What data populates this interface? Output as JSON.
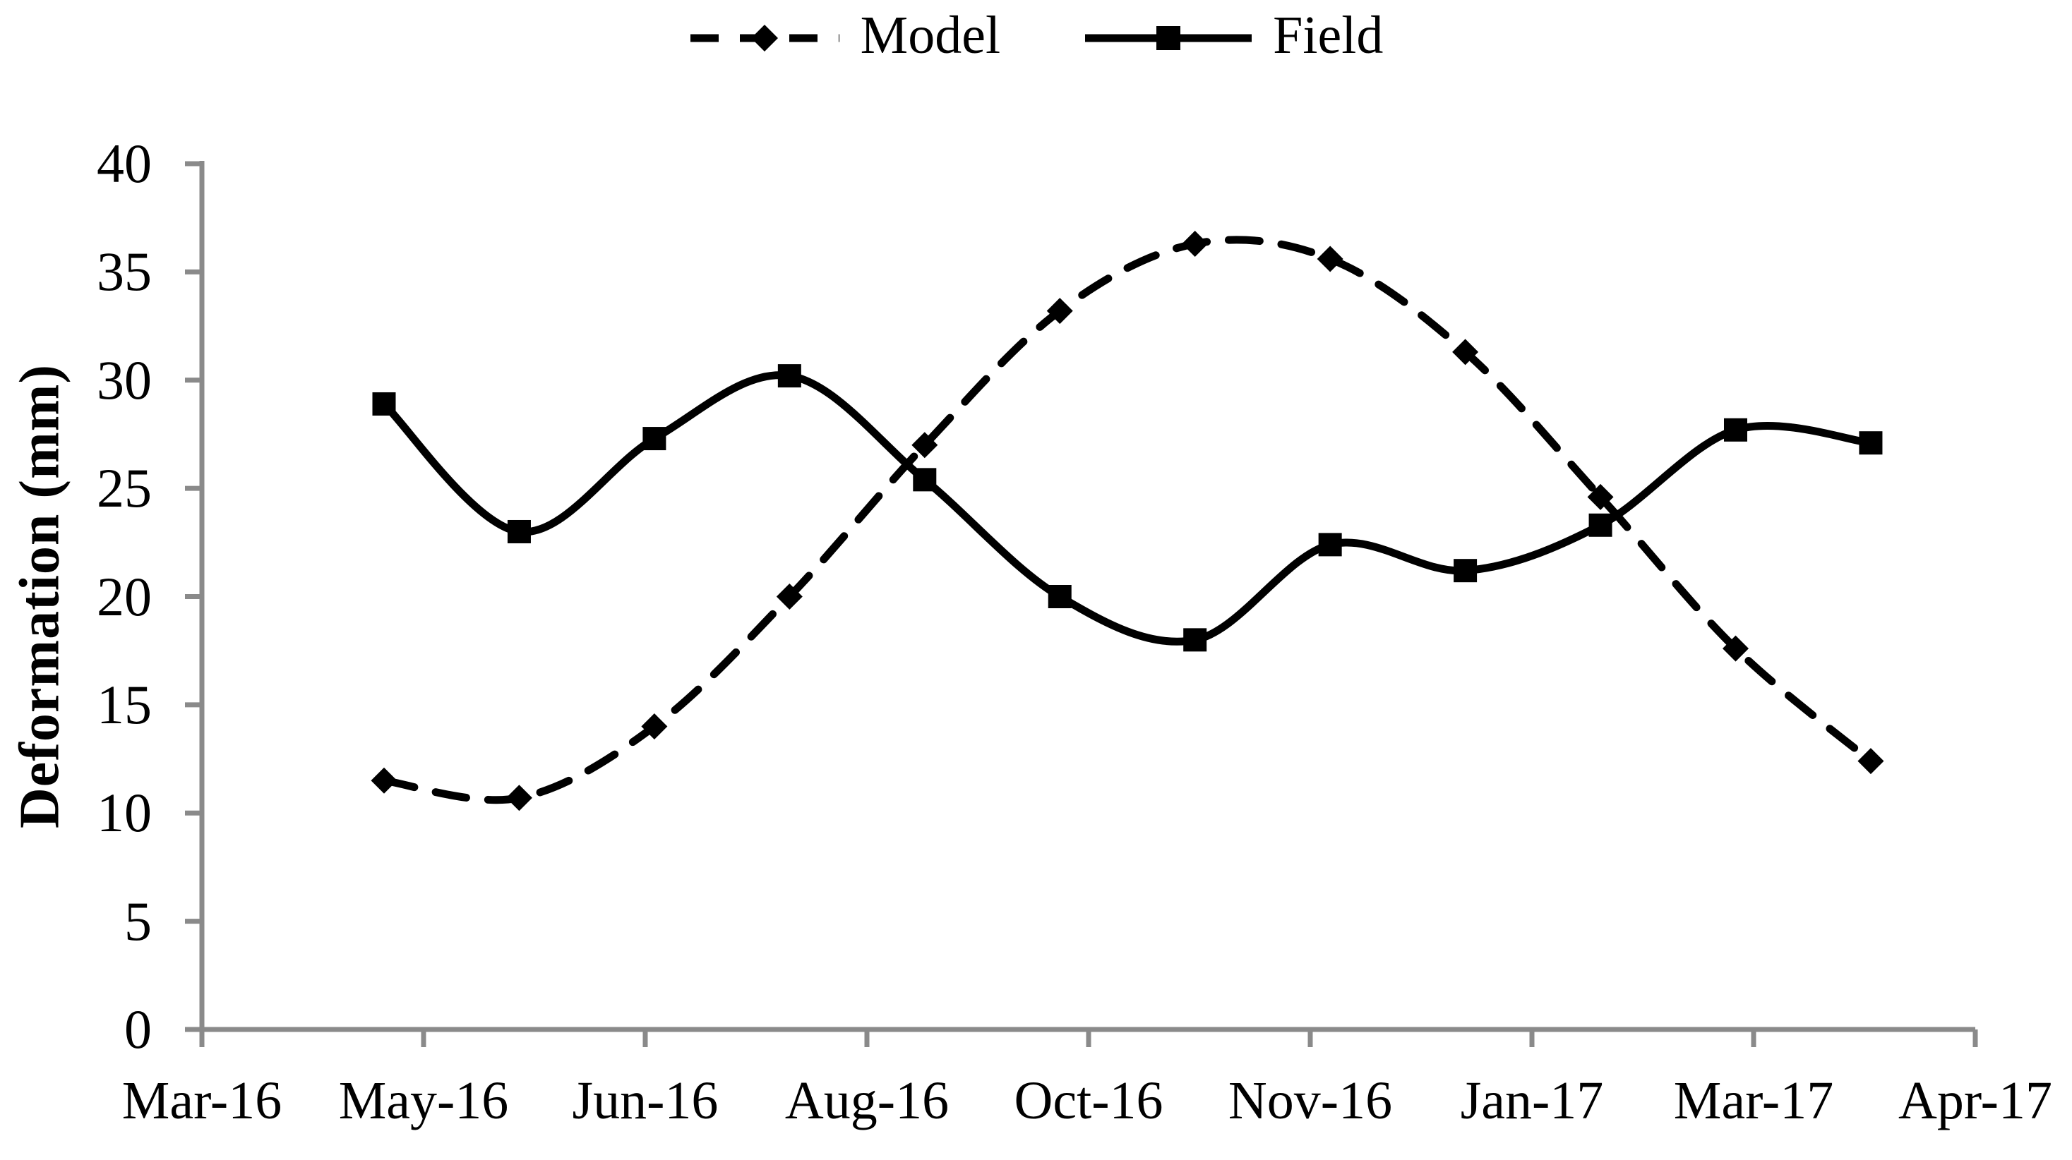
{
  "legend": {
    "model_label": "Model",
    "field_label": "Field"
  },
  "y_axis": {
    "title": "Deformation (mm)"
  },
  "chart_data": {
    "type": "line",
    "title": "",
    "xlabel": "",
    "ylabel": "Deformation (mm)",
    "ylim": [
      0,
      40
    ],
    "y_ticks": [
      0,
      5,
      10,
      15,
      20,
      25,
      30,
      35,
      40
    ],
    "x_tick_labels": [
      "Mar-16",
      "May-16",
      "Jun-16",
      "Aug-16",
      "Oct-16",
      "Nov-16",
      "Jan-17",
      "Mar-17",
      "Apr-17"
    ],
    "grid": "off",
    "legend_position": "top-center",
    "background_color": "#ffffff",
    "axis_color": "#8a8a8a",
    "line_color": "#000000",
    "series": [
      {
        "name": "Model",
        "line_style": "dashed",
        "marker": "diamond",
        "color": "#000000",
        "values": [
          11.5,
          10.7,
          14.0,
          20.0,
          27.0,
          33.2,
          36.3,
          35.6,
          31.3,
          24.6,
          17.6,
          12.4
        ]
      },
      {
        "name": "Field",
        "line_style": "solid",
        "marker": "square",
        "color": "#000000",
        "values": [
          28.9,
          23.0,
          27.3,
          30.2,
          25.4,
          20.0,
          18.0,
          22.4,
          21.2,
          23.3,
          27.7,
          27.1
        ]
      }
    ]
  }
}
